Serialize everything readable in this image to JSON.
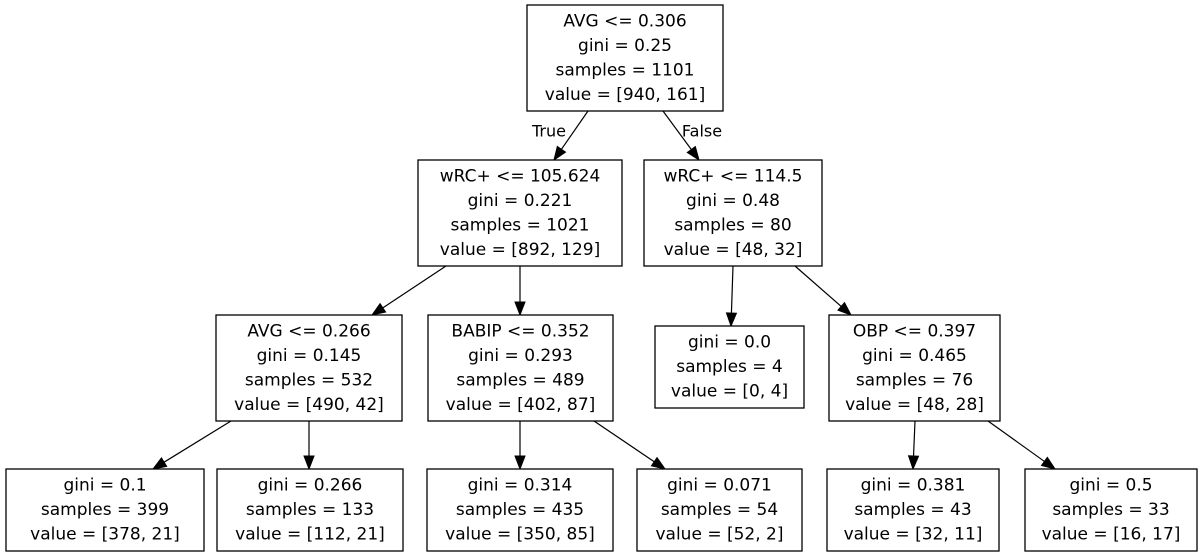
{
  "tree": {
    "nodes": [
      {
        "id": "n0",
        "lines": [
          "AVG <= 0.306",
          "gini = 0.25",
          "samples = 1101",
          "value = [940, 161]"
        ]
      },
      {
        "id": "n1",
        "lines": [
          "wRC+ <= 105.624",
          "gini = 0.221",
          "samples = 1021",
          "value = [892, 129]"
        ]
      },
      {
        "id": "n2",
        "lines": [
          "AVG <= 0.266",
          "gini = 0.145",
          "samples = 532",
          "value = [490, 42]"
        ]
      },
      {
        "id": "n3",
        "lines": [
          "gini = 0.1",
          "samples = 399",
          "value = [378, 21]"
        ]
      },
      {
        "id": "n4",
        "lines": [
          "gini = 0.266",
          "samples = 133",
          "value = [112, 21]"
        ]
      },
      {
        "id": "n5",
        "lines": [
          "BABIP <= 0.352",
          "gini = 0.293",
          "samples = 489",
          "value = [402, 87]"
        ]
      },
      {
        "id": "n6",
        "lines": [
          "gini = 0.314",
          "samples = 435",
          "value = [350, 85]"
        ]
      },
      {
        "id": "n7",
        "lines": [
          "gini = 0.071",
          "samples = 54",
          "value = [52, 2]"
        ]
      },
      {
        "id": "n8",
        "lines": [
          "wRC+ <= 114.5",
          "gini = 0.48",
          "samples = 80",
          "value = [48, 32]"
        ]
      },
      {
        "id": "n9",
        "lines": [
          "gini = 0.0",
          "samples = 4",
          "value = [0, 4]"
        ]
      },
      {
        "id": "n10",
        "lines": [
          "OBP <= 0.397",
          "gini = 0.465",
          "samples = 76",
          "value = [48, 28]"
        ]
      },
      {
        "id": "n11",
        "lines": [
          "gini = 0.381",
          "samples = 43",
          "value = [32, 11]"
        ]
      },
      {
        "id": "n12",
        "lines": [
          "gini = 0.5",
          "samples = 33",
          "value = [16, 17]"
        ]
      }
    ],
    "edges": [
      {
        "from": "n0",
        "to": "n1",
        "label": "True"
      },
      {
        "from": "n0",
        "to": "n8",
        "label": "False"
      },
      {
        "from": "n1",
        "to": "n2",
        "label": ""
      },
      {
        "from": "n1",
        "to": "n5",
        "label": ""
      },
      {
        "from": "n2",
        "to": "n3",
        "label": ""
      },
      {
        "from": "n2",
        "to": "n4",
        "label": ""
      },
      {
        "from": "n5",
        "to": "n6",
        "label": ""
      },
      {
        "from": "n5",
        "to": "n7",
        "label": ""
      },
      {
        "from": "n8",
        "to": "n9",
        "label": ""
      },
      {
        "from": "n8",
        "to": "n10",
        "label": ""
      },
      {
        "from": "n10",
        "to": "n11",
        "label": ""
      },
      {
        "from": "n10",
        "to": "n12",
        "label": ""
      }
    ]
  }
}
